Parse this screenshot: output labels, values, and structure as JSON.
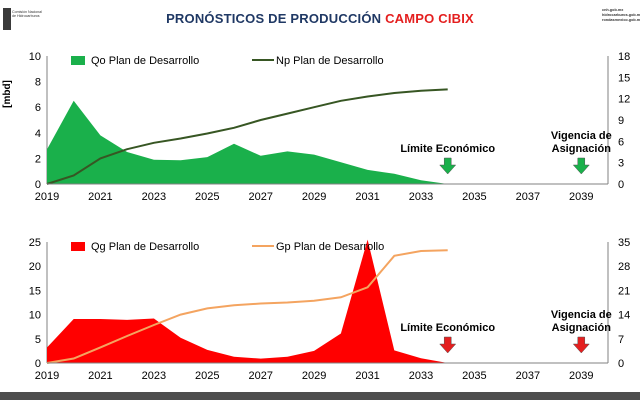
{
  "header": {
    "title_main": "PRONÓSTICOS DE PRODUCCIÓN",
    "title_highlight": "CAMPO CIBIX",
    "left_logo_text": "Comisión Nacional de Hidrocarburos",
    "right_logo_lines": [
      "cnh.gob.mx",
      "hidrocarburos.gob.mx",
      "rondasmexico.gob.mx"
    ]
  },
  "chart_data": [
    {
      "type": "area",
      "xlim": [
        2019,
        2040
      ],
      "xticks": [
        2019,
        2021,
        2023,
        2025,
        2027,
        2029,
        2031,
        2033,
        2035,
        2037,
        2039
      ],
      "ylabel": "[mbd]",
      "ylim": [
        0,
        10
      ],
      "yticks": [
        0,
        2,
        4,
        6,
        8,
        10
      ],
      "y2lim": [
        0,
        18
      ],
      "y2ticks": [
        0,
        3,
        6,
        9,
        12,
        15,
        18
      ],
      "series": [
        {
          "name": "Qo Plan de Desarrollo",
          "kind": "area",
          "axis": "left",
          "color": "#1ab04b",
          "x": [
            2019,
            2020,
            2021,
            2022,
            2023,
            2024,
            2025,
            2026,
            2027,
            2028,
            2029,
            2030,
            2031,
            2032,
            2033,
            2034
          ],
          "y": [
            2.7,
            6.5,
            3.8,
            2.5,
            1.9,
            1.85,
            2.1,
            3.15,
            2.2,
            2.55,
            2.3,
            1.7,
            1.1,
            0.8,
            0.3,
            0.0
          ]
        },
        {
          "name": "Np Plan de Desarrollo",
          "kind": "line",
          "axis": "right",
          "color": "#375623",
          "x": [
            2019,
            2020,
            2021,
            2022,
            2023,
            2024,
            2025,
            2026,
            2027,
            2028,
            2029,
            2030,
            2031,
            2032,
            2033,
            2034
          ],
          "y": [
            0.0,
            1.2,
            3.6,
            4.9,
            5.8,
            6.4,
            7.1,
            7.9,
            9.0,
            9.9,
            10.8,
            11.7,
            12.3,
            12.8,
            13.1,
            13.3
          ]
        }
      ],
      "annotations": [
        {
          "text": "Límite Económico",
          "x": 2034,
          "color": "#1ab04b"
        },
        {
          "text": "Vigencia de Asignación",
          "x": 2039,
          "color": "#1ab04b"
        }
      ],
      "legend_position": "top-left"
    },
    {
      "type": "area",
      "xlim": [
        2019,
        2040
      ],
      "xticks": [
        2019,
        2021,
        2023,
        2025,
        2027,
        2029,
        2031,
        2033,
        2035,
        2037,
        2039
      ],
      "ylim": [
        0,
        25
      ],
      "yticks": [
        0,
        5,
        10,
        15,
        20,
        25
      ],
      "y2lim": [
        0,
        35
      ],
      "y2ticks": [
        0,
        7,
        14,
        21,
        28,
        35
      ],
      "series": [
        {
          "name": "Qg Plan de Desarrollo",
          "kind": "area",
          "axis": "left",
          "color": "#ff0000",
          "x": [
            2019,
            2020,
            2021,
            2022,
            2023,
            2024,
            2025,
            2026,
            2027,
            2028,
            2029,
            2030,
            2031,
            2032,
            2033,
            2034
          ],
          "y": [
            3.2,
            9.1,
            9.1,
            8.9,
            9.2,
            5.2,
            2.7,
            1.3,
            0.9,
            1.3,
            2.5,
            6.1,
            25.5,
            2.6,
            1.0,
            0.0
          ]
        },
        {
          "name": "Gp Plan de Desarrollo",
          "kind": "line",
          "axis": "right",
          "color": "#f4a460",
          "x": [
            2019,
            2020,
            2021,
            2022,
            2023,
            2024,
            2025,
            2026,
            2027,
            2028,
            2029,
            2030,
            2031,
            2032,
            2033,
            2034
          ],
          "y": [
            0.0,
            1.3,
            4.5,
            7.8,
            11.0,
            14.0,
            15.8,
            16.7,
            17.2,
            17.5,
            18.0,
            19.0,
            21.9,
            31.0,
            32.4,
            32.6
          ]
        }
      ],
      "annotations": [
        {
          "text": "Límite Económico",
          "x": 2034,
          "color": "#e41f1f"
        },
        {
          "text": "Vigencia de Asignación",
          "x": 2039,
          "color": "#e41f1f"
        }
      ],
      "legend_position": "top-left"
    }
  ]
}
